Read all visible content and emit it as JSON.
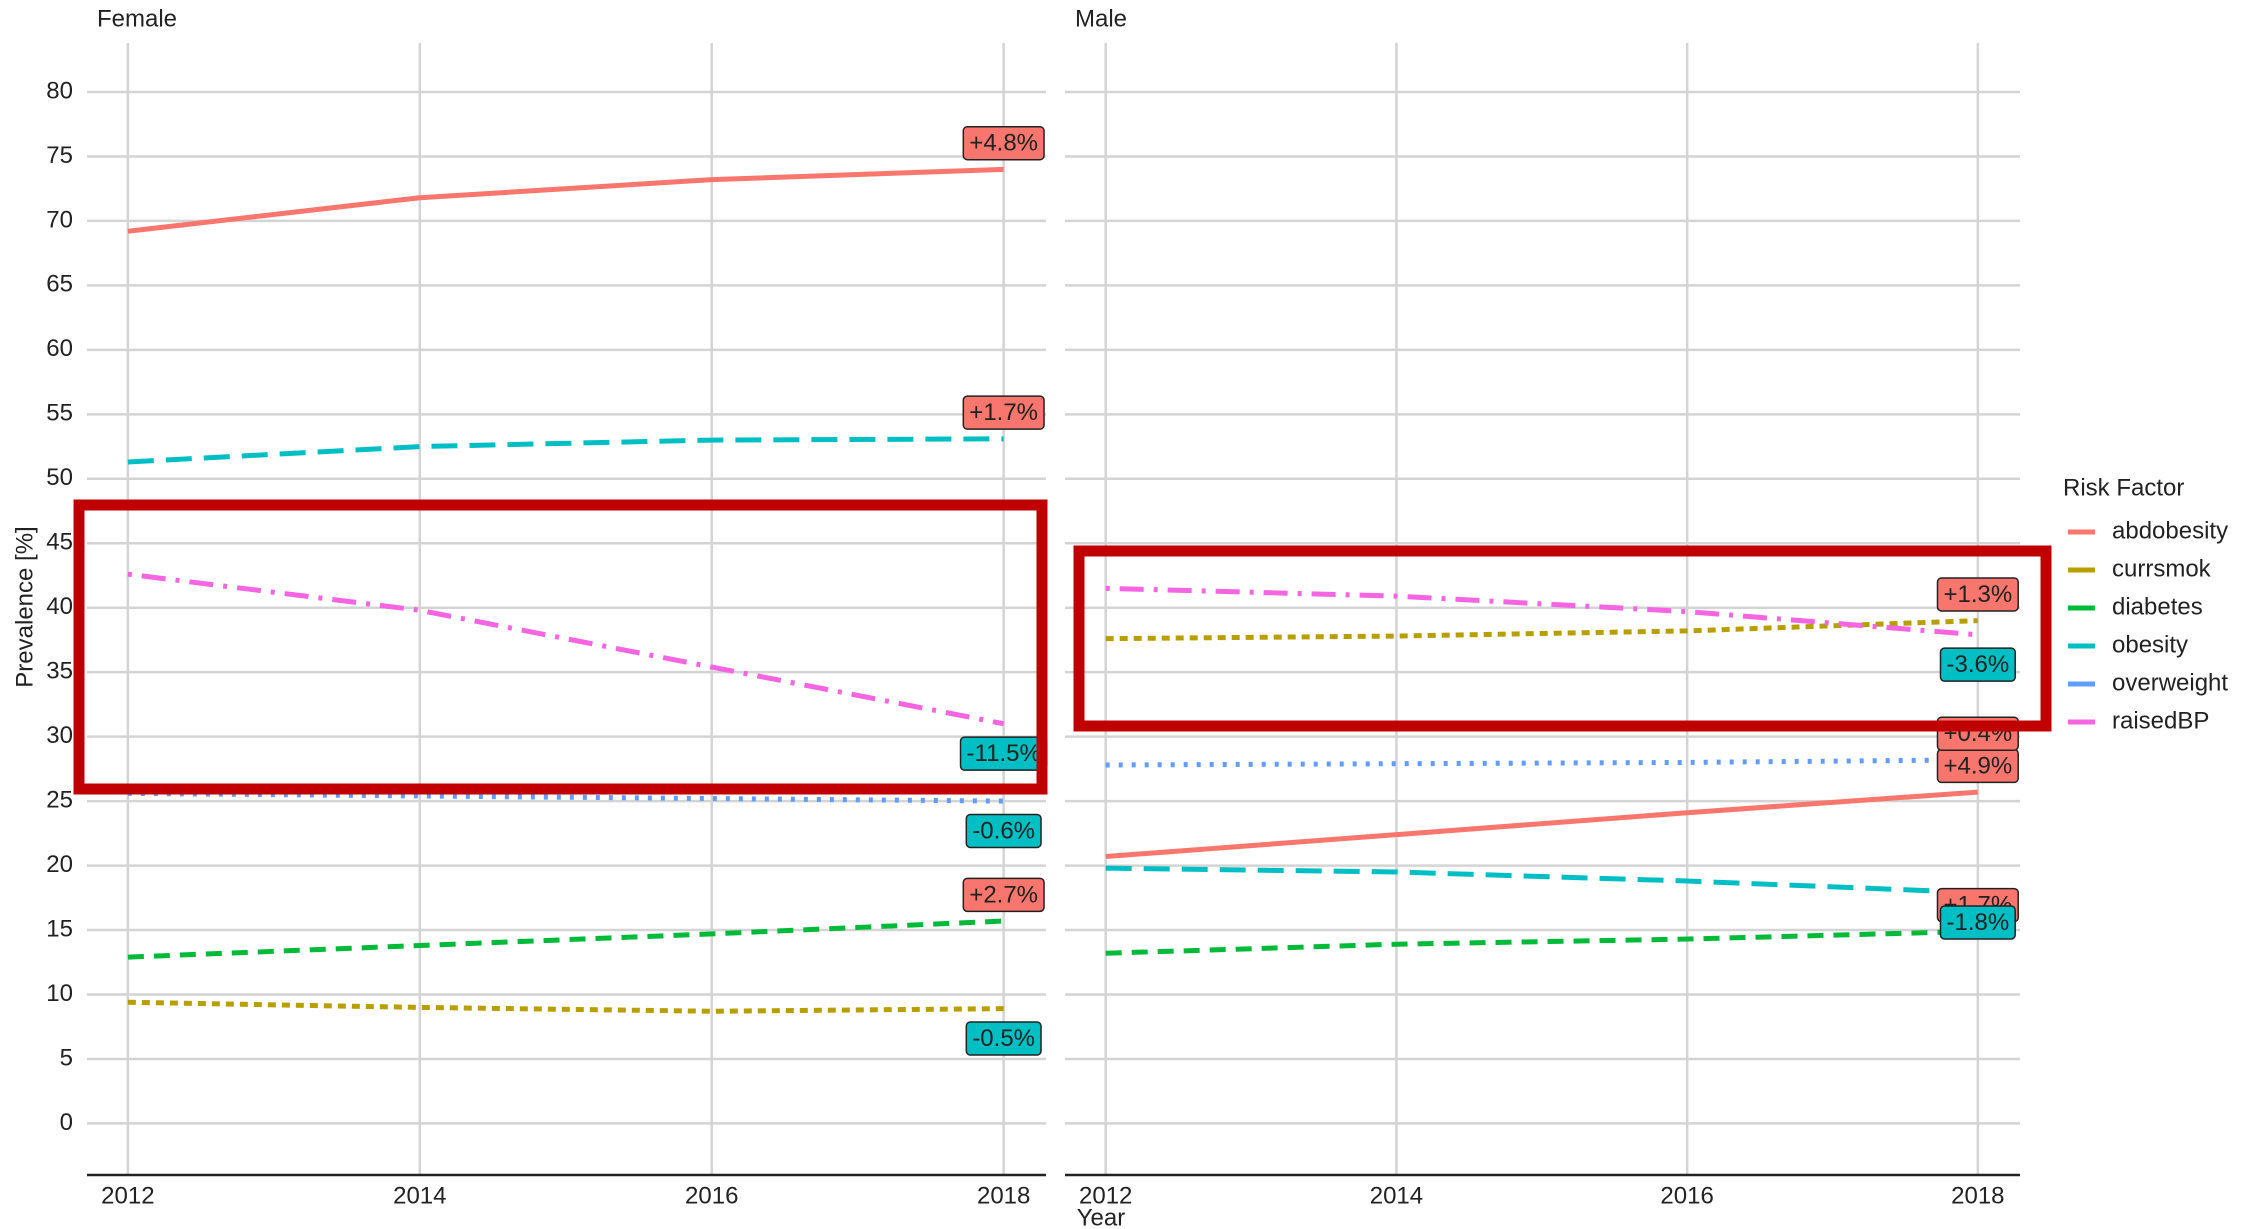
{
  "chart_data": [
    {
      "type": "line",
      "title": "Female",
      "xlabel": "Year",
      "ylabel": "Prevalence [%]",
      "legend_title": "Risk Factor",
      "x": [
        2012,
        2014,
        2016,
        2018
      ],
      "xlim": [
        2011.72,
        2018.29
      ],
      "xticks": [
        2012,
        2014,
        2016,
        2018
      ],
      "ylim": [
        -4,
        83.8
      ],
      "yticks": [
        0,
        5,
        10,
        15,
        20,
        25,
        30,
        35,
        40,
        45,
        50,
        55,
        60,
        65,
        70,
        75,
        80
      ],
      "grid": true,
      "series": [
        {
          "name": "abdobesity",
          "color": "#F8766D",
          "linetype": "solid",
          "values": [
            69.2,
            71.8,
            73.2,
            74.0
          ],
          "end_label": "+4.8%"
        },
        {
          "name": "currsmok",
          "color": "#B79F00",
          "linetype": "dashdot-short",
          "values": [
            9.4,
            9.0,
            8.7,
            8.9
          ],
          "end_label": "-0.5%"
        },
        {
          "name": "diabetes",
          "color": "#00BA38",
          "linetype": "dashed",
          "values": [
            12.9,
            13.8,
            14.7,
            15.7
          ],
          "end_label": "+2.7%"
        },
        {
          "name": "obesity",
          "color": "#00BFC4",
          "linetype": "longdash",
          "values": [
            51.3,
            52.5,
            53.0,
            53.1
          ],
          "end_label": "+1.7%"
        },
        {
          "name": "overweight",
          "color": "#619CFF",
          "linetype": "dotted",
          "values": [
            25.6,
            25.4,
            25.2,
            25.0
          ],
          "end_label": "-0.6%"
        },
        {
          "name": "raisedBP",
          "color": "#F564E3",
          "linetype": "dotdash",
          "values": [
            42.6,
            39.8,
            35.4,
            31.0
          ],
          "end_label": "-11.5%"
        }
      ]
    },
    {
      "type": "line",
      "title": "Male",
      "x": [
        2012,
        2014,
        2016,
        2018
      ],
      "xlim": [
        2011.72,
        2018.29
      ],
      "xticks": [
        2012,
        2014,
        2016,
        2018
      ],
      "ylim": [
        -4,
        83.8
      ],
      "yticks": [
        0,
        5,
        10,
        15,
        20,
        25,
        30,
        35,
        40,
        45,
        50,
        55,
        60,
        65,
        70,
        75,
        80
      ],
      "grid": true,
      "series": [
        {
          "color": "#F8766D",
          "linetype": "solid",
          "values": [
            20.7,
            22.4,
            24.1,
            25.7
          ],
          "end_label": "+4.9%"
        },
        {
          "color": "#B79F00",
          "linetype": "dashdot-short",
          "values": [
            37.6,
            37.8,
            38.2,
            39.0
          ],
          "end_label": "+1.3%"
        },
        {
          "color": "#00BA38",
          "linetype": "dashed",
          "values": [
            13.2,
            13.9,
            14.3,
            14.9
          ],
          "end_label": "+1.7%"
        },
        {
          "color": "#00BFC4",
          "linetype": "longdash",
          "values": [
            19.8,
            19.5,
            18.8,
            17.9
          ],
          "end_label": "-1.8%"
        },
        {
          "color": "#619CFF",
          "linetype": "dotted",
          "values": [
            27.8,
            27.9,
            28.0,
            28.2
          ],
          "end_label": "+0.4%"
        },
        {
          "color": "#F564E3",
          "linetype": "dotdash",
          "values": [
            41.5,
            40.9,
            39.7,
            37.9
          ],
          "end_label": "-3.6%"
        }
      ]
    }
  ]
}
